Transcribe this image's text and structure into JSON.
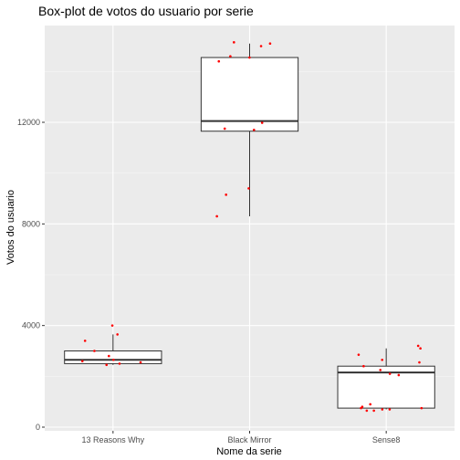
{
  "chart_data": {
    "type": "box",
    "title": "Box-plot de votos do usuario por serie",
    "xlabel": "Nome da serie",
    "ylabel": "Votos do usuario",
    "categories": [
      "13 Reasons Why",
      "Black Mirror",
      "Sense8"
    ],
    "ylim": [
      0,
      15500
    ],
    "yticks": [
      0,
      4000,
      8000,
      12000
    ],
    "ytick_labels": [
      "0",
      "4000",
      "8000",
      "12000"
    ],
    "grid": true,
    "point_color": "#ff0000",
    "panel_color": "#ebebeb",
    "boxes": [
      {
        "name": "13 Reasons Why",
        "min": 2450,
        "q1": 2500,
        "median": 2650,
        "q3": 3000,
        "max": 3650
      },
      {
        "name": "Black Mirror",
        "min": 8300,
        "q1": 11650,
        "median": 12050,
        "q3": 14550,
        "max": 15100
      },
      {
        "name": "Sense8",
        "min": 700,
        "q1": 750,
        "median": 2150,
        "q3": 2400,
        "max": 3100
      }
    ],
    "points": [
      {
        "series": "13 Reasons Why",
        "values": [
          4000,
          3650,
          3400,
          3000,
          2800,
          2650,
          2600,
          2550,
          2500,
          2450
        ]
      },
      {
        "series": "Black Mirror",
        "values": [
          15150,
          15100,
          15000,
          14400,
          14550,
          14600,
          11980,
          11750,
          11700,
          9400,
          9150,
          8300
        ]
      },
      {
        "series": "Sense8",
        "values": [
          3200,
          3100,
          2850,
          2650,
          2550,
          2400,
          2250,
          2100,
          2050,
          900,
          800,
          750,
          700,
          650,
          700,
          650,
          750
        ]
      }
    ]
  }
}
